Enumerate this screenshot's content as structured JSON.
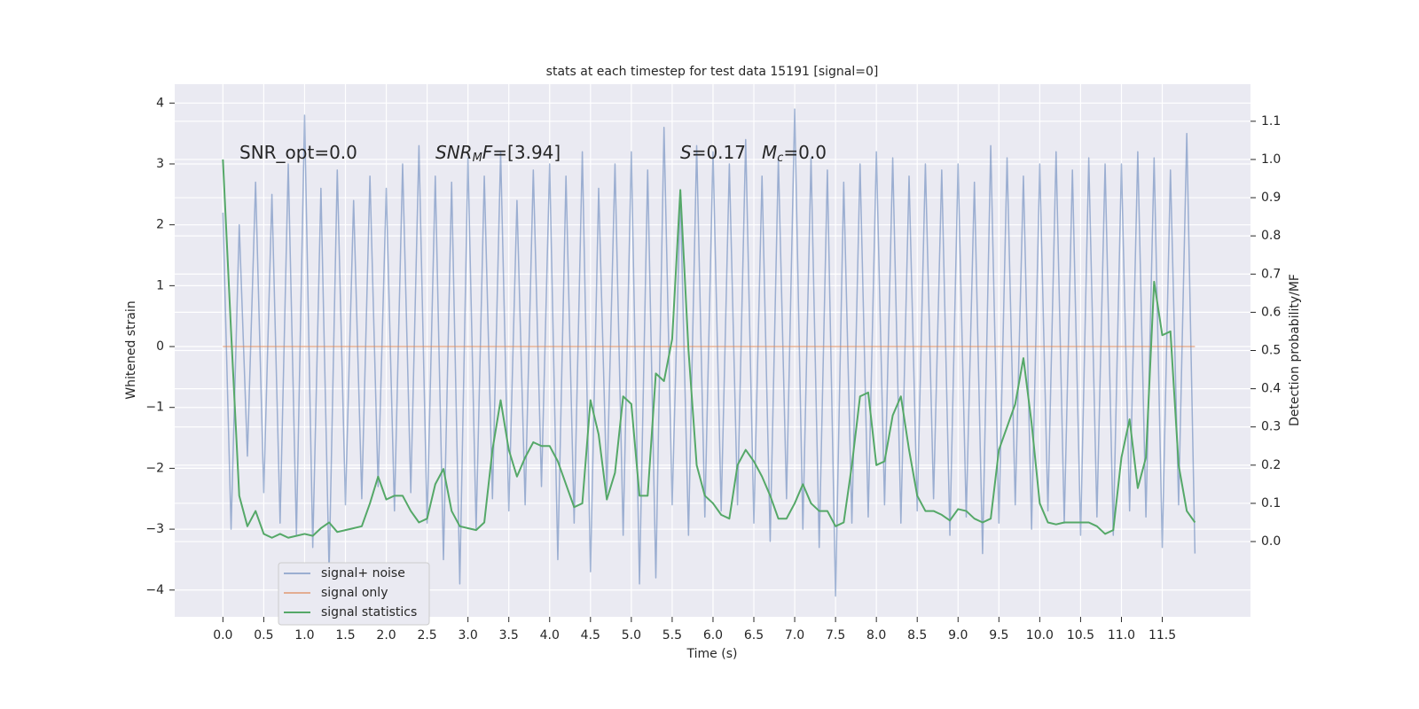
{
  "chart_data": {
    "type": "line",
    "title": "stats at each timestep for test data 15191 [signal=0]",
    "xlabel": "Time (s)",
    "ylabel": "Whitened strain",
    "y2label": "Detection probability/MF",
    "grid": true,
    "legend": "lower left",
    "annotations": [
      {
        "parts": [
          {
            "text": "SNR_opt=0.0"
          }
        ]
      },
      {
        "parts": [
          {
            "text": "SNR",
            "style": "italic"
          },
          {
            "text": "M",
            "style": "sub"
          },
          {
            "text": "F",
            "style": "italic"
          },
          {
            "text": "=[3.94]"
          }
        ]
      },
      {
        "parts": [
          {
            "text": "S",
            "style": "italic"
          },
          {
            "text": "=0.17"
          }
        ]
      },
      {
        "parts": [
          {
            "text": "M",
            "style": "italic"
          },
          {
            "text": "c",
            "style": "sub"
          },
          {
            "text": "=0.0"
          }
        ]
      }
    ],
    "xlim": [
      -0.59,
      12.58
    ],
    "xticks": [
      {
        "value": 0,
        "label": "0.0"
      },
      {
        "value": 0.5,
        "label": "0.5"
      },
      {
        "value": 1,
        "label": "1.0"
      },
      {
        "value": 1.5,
        "label": "1.5"
      },
      {
        "value": 2,
        "label": "2.0"
      },
      {
        "value": 2.5,
        "label": "2.5"
      },
      {
        "value": 3,
        "label": "3.0"
      },
      {
        "value": 3.5,
        "label": "3.5"
      },
      {
        "value": 4,
        "label": "4.0"
      },
      {
        "value": 4.5,
        "label": "4.5"
      },
      {
        "value": 5,
        "label": "5.0"
      },
      {
        "value": 5.5,
        "label": "5.5"
      },
      {
        "value": 6,
        "label": "6.0"
      },
      {
        "value": 6.5,
        "label": "6.5"
      },
      {
        "value": 7,
        "label": "7.0"
      },
      {
        "value": 7.5,
        "label": "7.5"
      },
      {
        "value": 8,
        "label": "8.0"
      },
      {
        "value": 8.5,
        "label": "8.5"
      },
      {
        "value": 9,
        "label": "9.0"
      },
      {
        "value": 9.5,
        "label": "9.5"
      },
      {
        "value": 10,
        "label": "10.0"
      },
      {
        "value": 10.5,
        "label": "10.5"
      },
      {
        "value": 11,
        "label": "11.0"
      },
      {
        "value": 11.5,
        "label": "11.5"
      }
    ],
    "ylim": [
      -4.44,
      4.31
    ],
    "yticks": [
      {
        "value": -4,
        "label": "−4"
      },
      {
        "value": -3,
        "label": "−3"
      },
      {
        "value": -2,
        "label": "−2"
      },
      {
        "value": -1,
        "label": "−1"
      },
      0,
      1,
      2,
      3,
      4
    ],
    "y2lim": [
      -0.197,
      1.197
    ],
    "y2ticks": [
      {
        "value": 0,
        "label": "0.0"
      },
      {
        "value": 0.1,
        "label": "0.1"
      },
      {
        "value": 0.2,
        "label": "0.2"
      },
      {
        "value": 0.3,
        "label": "0.3"
      },
      {
        "value": 0.4,
        "label": "0.4"
      },
      {
        "value": 0.5,
        "label": "0.5"
      },
      {
        "value": 0.6,
        "label": "0.6"
      },
      {
        "value": 0.7,
        "label": "0.7"
      },
      {
        "value": 0.8,
        "label": "0.8"
      },
      {
        "value": 0.9,
        "label": "0.9"
      },
      {
        "value": 1,
        "label": "1.0"
      },
      {
        "value": 1.1,
        "label": "1.1"
      }
    ],
    "x": [
      0,
      0.1,
      0.2,
      0.3,
      0.4,
      0.5,
      0.6,
      0.7,
      0.8,
      0.9,
      1,
      1.1,
      1.2,
      1.3,
      1.4,
      1.5,
      1.6,
      1.7,
      1.8,
      1.9,
      2,
      2.1,
      2.2,
      2.3,
      2.4,
      2.5,
      2.6,
      2.7,
      2.8,
      2.9,
      3,
      3.1,
      3.2,
      3.3,
      3.4,
      3.5,
      3.6,
      3.7,
      3.8,
      3.9,
      4,
      4.1,
      4.2,
      4.3,
      4.4,
      4.5,
      4.6,
      4.7,
      4.8,
      4.9,
      5,
      5.1,
      5.2,
      5.3,
      5.4,
      5.5,
      5.6,
      5.7,
      5.8,
      5.9,
      6,
      6.1,
      6.2,
      6.3,
      6.4,
      6.5,
      6.6,
      6.7,
      6.8,
      6.9,
      7,
      7.1,
      7.2,
      7.3,
      7.4,
      7.5,
      7.6,
      7.7,
      7.8,
      7.9,
      8,
      8.1,
      8.2,
      8.3,
      8.4,
      8.5,
      8.6,
      8.7,
      8.8,
      8.9,
      9,
      9.1,
      9.2,
      9.3,
      9.4,
      9.5,
      9.6,
      9.7,
      9.8,
      9.9,
      10,
      10.1,
      10.2,
      10.3,
      10.4,
      10.5,
      10.6,
      10.7,
      10.8,
      10.9,
      11,
      11.1,
      11.2,
      11.3,
      11.4,
      11.5,
      11.6,
      11.7,
      11.8,
      11.9
    ],
    "series": [
      {
        "name": "signal+ noise",
        "color": "#4c72b0",
        "alpha": 0.5,
        "values": [
          2.2,
          -3.0,
          2.0,
          -1.8,
          2.7,
          -2.4,
          2.5,
          -2.9,
          3.0,
          -3.1,
          3.8,
          -3.3,
          2.6,
          -3.7,
          2.9,
          -2.6,
          2.4,
          -2.5,
          2.8,
          -2.3,
          2.6,
          -2.7,
          3.0,
          -2.4,
          3.3,
          -2.9,
          2.8,
          -3.5,
          2.7,
          -3.9,
          3.1,
          -3.0,
          2.8,
          -2.5,
          3.2,
          -2.7,
          2.4,
          -2.6,
          2.9,
          -2.3,
          3.0,
          -3.5,
          2.8,
          -2.9,
          3.2,
          -3.7,
          2.6,
          -2.4,
          3.0,
          -3.1,
          3.2,
          -3.9,
          2.9,
          -3.8,
          3.6,
          -2.6,
          2.5,
          -3.1,
          3.3,
          -2.8,
          3.2,
          -2.7,
          3.0,
          -2.6,
          3.4,
          -2.9,
          2.8,
          -3.2,
          3.1,
          -2.5,
          3.9,
          -3.0,
          3.1,
          -3.3,
          2.9,
          -4.1,
          2.7,
          -2.9,
          3.0,
          -2.8,
          3.2,
          -2.6,
          3.1,
          -2.9,
          2.8,
          -2.7,
          3.0,
          -2.5,
          2.9,
          -3.1,
          3.0,
          -2.8,
          2.7,
          -3.4,
          3.3,
          -2.9,
          3.1,
          -2.6,
          2.8,
          -3.0,
          3.0,
          -2.7,
          3.2,
          -2.9,
          2.9,
          -3.1,
          3.1,
          -2.8,
          3.0,
          -3.1,
          3.0,
          -2.7,
          3.2,
          -2.8,
          3.1,
          -3.3,
          2.9,
          -2.6,
          3.5,
          -3.4
        ]
      },
      {
        "name": "signal only",
        "color": "#dd8452",
        "alpha": 0.6,
        "values": [
          0,
          0,
          0,
          0,
          0,
          0,
          0,
          0,
          0,
          0,
          0,
          0,
          0,
          0,
          0,
          0,
          0,
          0,
          0,
          0,
          0,
          0,
          0,
          0,
          0,
          0,
          0,
          0,
          0,
          0,
          0,
          0,
          0,
          0,
          0,
          0,
          0,
          0,
          0,
          0,
          0,
          0,
          0,
          0,
          0,
          0,
          0,
          0,
          0,
          0,
          0,
          0,
          0,
          0,
          0,
          0,
          0,
          0,
          0,
          0,
          0,
          0,
          0,
          0,
          0,
          0,
          0,
          0,
          0,
          0,
          0,
          0,
          0,
          0,
          0,
          0,
          0,
          0,
          0,
          0,
          0,
          0,
          0,
          0,
          0,
          0,
          0,
          0,
          0,
          0,
          0,
          0,
          0,
          0,
          0,
          0,
          0,
          0,
          0,
          0,
          0,
          0,
          0,
          0,
          0,
          0,
          0,
          0,
          0,
          0,
          0,
          0,
          0,
          0,
          0,
          0,
          0,
          0,
          0,
          0
        ]
      },
      {
        "name": "signal statistics",
        "color": "#55a868",
        "alpha": 1,
        "axis": "y2",
        "values": [
          1.0,
          0.55,
          0.12,
          0.04,
          0.08,
          0.02,
          0.01,
          0.02,
          0.01,
          0.015,
          0.02,
          0.015,
          0.035,
          0.05,
          0.025,
          0.03,
          0.035,
          0.04,
          0.1,
          0.17,
          0.11,
          0.12,
          0.12,
          0.08,
          0.05,
          0.06,
          0.15,
          0.19,
          0.08,
          0.04,
          0.035,
          0.03,
          0.05,
          0.24,
          0.37,
          0.24,
          0.17,
          0.22,
          0.26,
          0.25,
          0.25,
          0.21,
          0.15,
          0.09,
          0.1,
          0.37,
          0.28,
          0.11,
          0.18,
          0.38,
          0.36,
          0.12,
          0.12,
          0.44,
          0.42,
          0.53,
          0.92,
          0.5,
          0.2,
          0.12,
          0.1,
          0.07,
          0.06,
          0.2,
          0.24,
          0.21,
          0.17,
          0.12,
          0.06,
          0.06,
          0.1,
          0.15,
          0.1,
          0.08,
          0.08,
          0.04,
          0.05,
          0.2,
          0.38,
          0.39,
          0.2,
          0.21,
          0.33,
          0.38,
          0.24,
          0.12,
          0.08,
          0.08,
          0.07,
          0.055,
          0.085,
          0.08,
          0.06,
          0.05,
          0.06,
          0.24,
          0.3,
          0.36,
          0.48,
          0.31,
          0.1,
          0.05,
          0.045,
          0.05,
          0.05,
          0.05,
          0.05,
          0.04,
          0.02,
          0.03,
          0.22,
          0.32,
          0.14,
          0.22,
          0.68,
          0.54,
          0.55,
          0.2,
          0.08,
          0.05
        ]
      }
    ]
  }
}
